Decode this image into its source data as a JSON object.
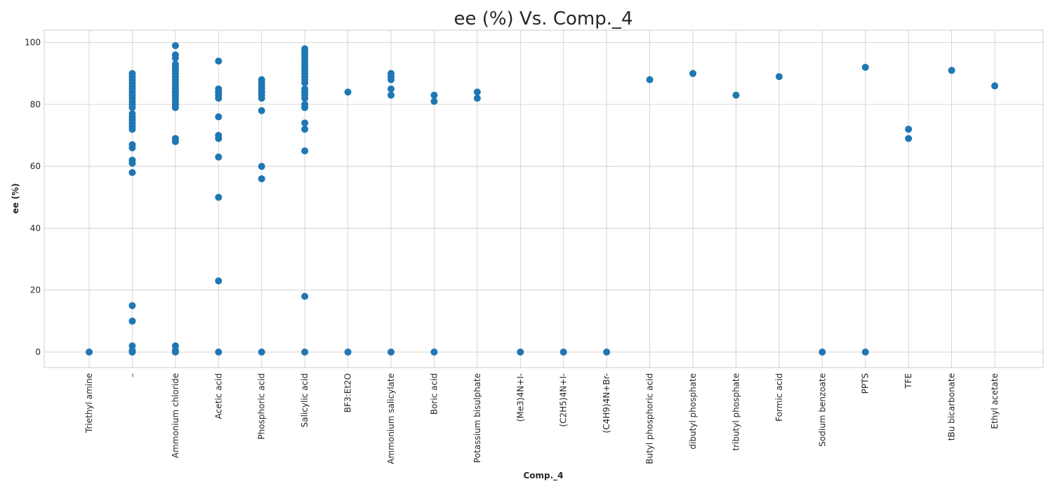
{
  "chart_data": {
    "type": "scatter",
    "title": "ee (%) Vs. Comp._4",
    "xlabel": "Comp._4",
    "ylabel": "ee (%)",
    "ylim": [
      -5,
      104
    ],
    "yticks": [
      0,
      20,
      40,
      60,
      80,
      100
    ],
    "grid": true,
    "categories": [
      "Triethyl amine",
      "–",
      "Ammonium chloride",
      "Acetic acid",
      "Phosphoric acid",
      "Salicylic acid",
      "BF3:Et2O",
      "Ammonium salicylate",
      "Boric acid",
      "Potassium bisulphate",
      "(Me3)4N+I-",
      "(C2H5)4N+I-",
      "(C4H9)4N+Br-",
      "Butyl phosphoric acid",
      "dibutyl phosphate",
      "tributyl phosphate",
      "Formic acid",
      "Sodium benzoate",
      "PPTS",
      "TFE",
      "tBu bicarbonate",
      "Ethyl acetate"
    ],
    "series": [
      {
        "color": "#1f77b4",
        "points": [
          {
            "x": "Triethyl amine",
            "y": 0
          },
          {
            "x": "–",
            "y": 90
          },
          {
            "x": "–",
            "y": 89
          },
          {
            "x": "–",
            "y": 88
          },
          {
            "x": "–",
            "y": 87
          },
          {
            "x": "–",
            "y": 86
          },
          {
            "x": "–",
            "y": 85
          },
          {
            "x": "–",
            "y": 84
          },
          {
            "x": "–",
            "y": 83
          },
          {
            "x": "–",
            "y": 82
          },
          {
            "x": "–",
            "y": 81
          },
          {
            "x": "–",
            "y": 80
          },
          {
            "x": "–",
            "y": 79
          },
          {
            "x": "–",
            "y": 77
          },
          {
            "x": "–",
            "y": 76
          },
          {
            "x": "–",
            "y": 75
          },
          {
            "x": "–",
            "y": 74
          },
          {
            "x": "–",
            "y": 73
          },
          {
            "x": "–",
            "y": 72
          },
          {
            "x": "–",
            "y": 67
          },
          {
            "x": "–",
            "y": 66
          },
          {
            "x": "–",
            "y": 62
          },
          {
            "x": "–",
            "y": 61
          },
          {
            "x": "–",
            "y": 58
          },
          {
            "x": "–",
            "y": 15
          },
          {
            "x": "–",
            "y": 10
          },
          {
            "x": "–",
            "y": 2
          },
          {
            "x": "–",
            "y": 0.5
          },
          {
            "x": "–",
            "y": 0
          },
          {
            "x": "Ammonium chloride",
            "y": 99
          },
          {
            "x": "Ammonium chloride",
            "y": 96
          },
          {
            "x": "Ammonium chloride",
            "y": 95
          },
          {
            "x": "Ammonium chloride",
            "y": 93
          },
          {
            "x": "Ammonium chloride",
            "y": 92
          },
          {
            "x": "Ammonium chloride",
            "y": 91
          },
          {
            "x": "Ammonium chloride",
            "y": 90
          },
          {
            "x": "Ammonium chloride",
            "y": 89
          },
          {
            "x": "Ammonium chloride",
            "y": 88
          },
          {
            "x": "Ammonium chloride",
            "y": 87
          },
          {
            "x": "Ammonium chloride",
            "y": 86
          },
          {
            "x": "Ammonium chloride",
            "y": 85
          },
          {
            "x": "Ammonium chloride",
            "y": 84
          },
          {
            "x": "Ammonium chloride",
            "y": 83
          },
          {
            "x": "Ammonium chloride",
            "y": 82
          },
          {
            "x": "Ammonium chloride",
            "y": 81
          },
          {
            "x": "Ammonium chloride",
            "y": 80
          },
          {
            "x": "Ammonium chloride",
            "y": 79
          },
          {
            "x": "Ammonium chloride",
            "y": 69
          },
          {
            "x": "Ammonium chloride",
            "y": 68
          },
          {
            "x": "Ammonium chloride",
            "y": 2
          },
          {
            "x": "Ammonium chloride",
            "y": 0.5
          },
          {
            "x": "Ammonium chloride",
            "y": 0
          },
          {
            "x": "Acetic acid",
            "y": 94
          },
          {
            "x": "Acetic acid",
            "y": 85
          },
          {
            "x": "Acetic acid",
            "y": 84
          },
          {
            "x": "Acetic acid",
            "y": 83
          },
          {
            "x": "Acetic acid",
            "y": 82
          },
          {
            "x": "Acetic acid",
            "y": 76
          },
          {
            "x": "Acetic acid",
            "y": 70
          },
          {
            "x": "Acetic acid",
            "y": 69
          },
          {
            "x": "Acetic acid",
            "y": 63
          },
          {
            "x": "Acetic acid",
            "y": 50
          },
          {
            "x": "Acetic acid",
            "y": 23
          },
          {
            "x": "Acetic acid",
            "y": 0
          },
          {
            "x": "Phosphoric acid",
            "y": 88
          },
          {
            "x": "Phosphoric acid",
            "y": 87
          },
          {
            "x": "Phosphoric acid",
            "y": 86
          },
          {
            "x": "Phosphoric acid",
            "y": 85
          },
          {
            "x": "Phosphoric acid",
            "y": 84
          },
          {
            "x": "Phosphoric acid",
            "y": 83
          },
          {
            "x": "Phosphoric acid",
            "y": 82
          },
          {
            "x": "Phosphoric acid",
            "y": 78
          },
          {
            "x": "Phosphoric acid",
            "y": 60
          },
          {
            "x": "Phosphoric acid",
            "y": 56
          },
          {
            "x": "Phosphoric acid",
            "y": 0
          },
          {
            "x": "Salicylic acid",
            "y": 98
          },
          {
            "x": "Salicylic acid",
            "y": 97
          },
          {
            "x": "Salicylic acid",
            "y": 96
          },
          {
            "x": "Salicylic acid",
            "y": 95
          },
          {
            "x": "Salicylic acid",
            "y": 94
          },
          {
            "x": "Salicylic acid",
            "y": 93
          },
          {
            "x": "Salicylic acid",
            "y": 92
          },
          {
            "x": "Salicylic acid",
            "y": 91
          },
          {
            "x": "Salicylic acid",
            "y": 90
          },
          {
            "x": "Salicylic acid",
            "y": 89
          },
          {
            "x": "Salicylic acid",
            "y": 88
          },
          {
            "x": "Salicylic acid",
            "y": 87
          },
          {
            "x": "Salicylic acid",
            "y": 85
          },
          {
            "x": "Salicylic acid",
            "y": 84
          },
          {
            "x": "Salicylic acid",
            "y": 83
          },
          {
            "x": "Salicylic acid",
            "y": 82
          },
          {
            "x": "Salicylic acid",
            "y": 80
          },
          {
            "x": "Salicylic acid",
            "y": 79
          },
          {
            "x": "Salicylic acid",
            "y": 74
          },
          {
            "x": "Salicylic acid",
            "y": 72
          },
          {
            "x": "Salicylic acid",
            "y": 65
          },
          {
            "x": "Salicylic acid",
            "y": 18
          },
          {
            "x": "Salicylic acid",
            "y": 0
          },
          {
            "x": "BF3:Et2O",
            "y": 84
          },
          {
            "x": "BF3:Et2O",
            "y": 0
          },
          {
            "x": "Ammonium salicylate",
            "y": 90
          },
          {
            "x": "Ammonium salicylate",
            "y": 89
          },
          {
            "x": "Ammonium salicylate",
            "y": 88
          },
          {
            "x": "Ammonium salicylate",
            "y": 85
          },
          {
            "x": "Ammonium salicylate",
            "y": 83
          },
          {
            "x": "Ammonium salicylate",
            "y": 0
          },
          {
            "x": "Boric acid",
            "y": 83
          },
          {
            "x": "Boric acid",
            "y": 81
          },
          {
            "x": "Boric acid",
            "y": 0
          },
          {
            "x": "Potassium bisulphate",
            "y": 84
          },
          {
            "x": "Potassium bisulphate",
            "y": 82
          },
          {
            "x": "(Me3)4N+I-",
            "y": 0
          },
          {
            "x": "(C2H5)4N+I-",
            "y": 0
          },
          {
            "x": "(C4H9)4N+Br-",
            "y": 0
          },
          {
            "x": "Butyl phosphoric acid",
            "y": 88
          },
          {
            "x": "dibutyl phosphate",
            "y": 90
          },
          {
            "x": "tributyl phosphate",
            "y": 83
          },
          {
            "x": "Formic acid",
            "y": 89
          },
          {
            "x": "Sodium benzoate",
            "y": 0
          },
          {
            "x": "PPTS",
            "y": 92
          },
          {
            "x": "PPTS",
            "y": 0
          },
          {
            "x": "TFE",
            "y": 72
          },
          {
            "x": "TFE",
            "y": 69
          },
          {
            "x": "tBu bicarbonate",
            "y": 91
          },
          {
            "x": "Ethyl acetate",
            "y": 86
          }
        ]
      }
    ]
  }
}
